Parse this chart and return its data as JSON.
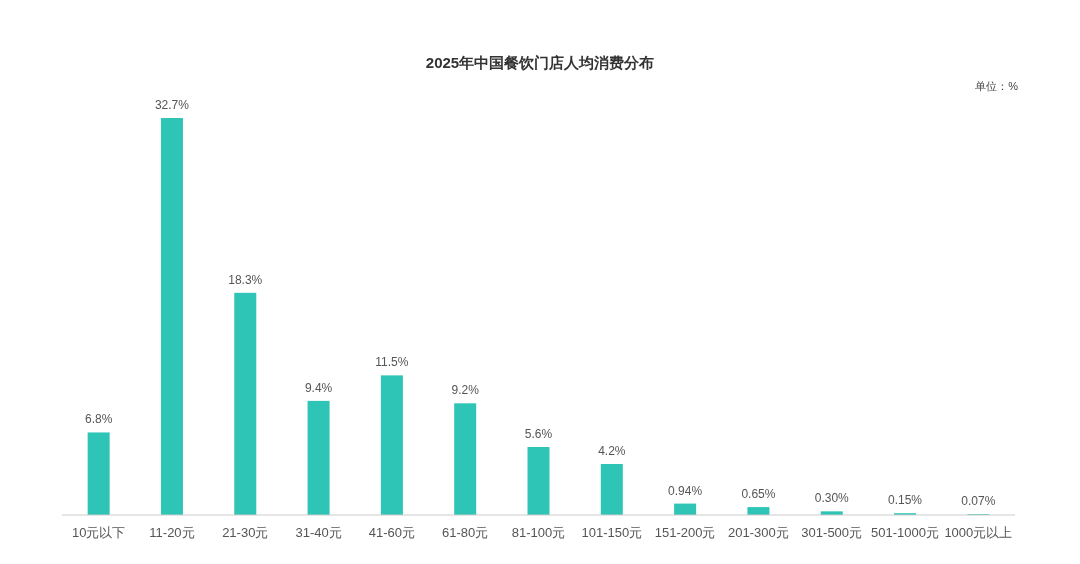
{
  "chart_data": {
    "type": "bar",
    "title": "2025年中国餐饮门店人均消费分布",
    "categories": [
      "10元以下",
      "11-20元",
      "21-30元",
      "31-40元",
      "41-60元",
      "61-80元",
      "81-100元",
      "101-150元",
      "151-200元",
      "201-300元",
      "301-500元",
      "501-1000元",
      "1000元以上"
    ],
    "values": [
      6.8,
      32.7,
      18.3,
      9.4,
      11.5,
      9.2,
      5.6,
      4.2,
      0.94,
      0.65,
      0.3,
      0.15,
      0.07
    ],
    "value_labels": [
      "6.8%",
      "32.7%",
      "18.3%",
      "9.4%",
      "11.5%",
      "9.2%",
      "5.6%",
      "4.2%",
      "0.94%",
      "0.65%",
      "0.30%",
      "0.15%",
      "0.07%"
    ],
    "color": "#2ec4b6",
    "annotations": [
      "单位：%"
    ],
    "grid": false
  }
}
